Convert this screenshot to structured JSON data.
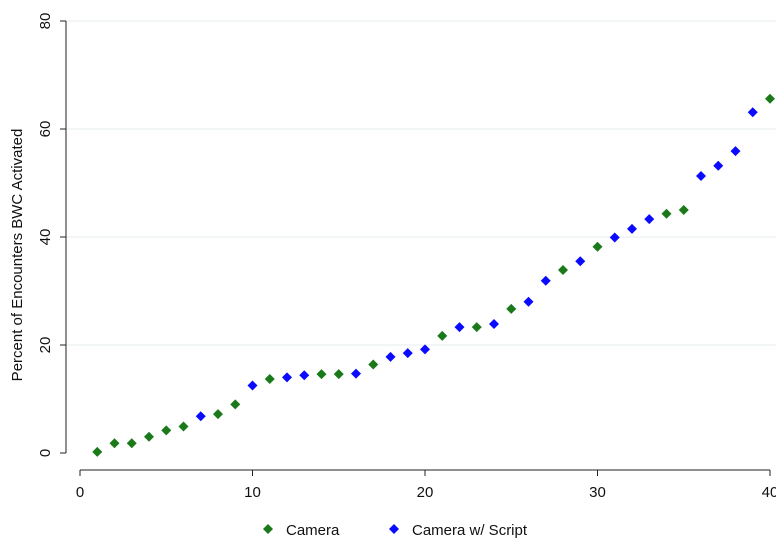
{
  "chart_data": {
    "type": "scatter",
    "title": "",
    "xlabel": "",
    "ylabel": "Percent of Encounters BWC Activated",
    "xlim": [
      0,
      40
    ],
    "ylim": [
      0,
      80
    ],
    "xticks": [
      0,
      10,
      20,
      30,
      40
    ],
    "yticks": [
      0,
      20,
      40,
      60,
      80
    ],
    "grid": "horizontal",
    "legend_position": "bottom",
    "colors": {
      "Camera": "#1a7a1a",
      "Camera w/ Script": "#0a0aff"
    },
    "series": [
      {
        "name": "Camera",
        "points": [
          [
            1,
            0.2
          ],
          [
            2,
            1.8
          ],
          [
            3,
            1.8
          ],
          [
            4,
            3.0
          ],
          [
            5,
            4.2
          ],
          [
            6,
            4.9
          ],
          [
            8,
            7.2
          ],
          [
            9,
            9.0
          ],
          [
            11,
            13.7
          ],
          [
            14,
            14.6
          ],
          [
            15,
            14.6
          ],
          [
            17,
            16.4
          ],
          [
            21,
            21.7
          ],
          [
            23,
            23.3
          ],
          [
            25,
            26.7
          ],
          [
            28,
            33.9
          ],
          [
            30,
            38.2
          ],
          [
            34,
            44.3
          ],
          [
            35,
            45.0
          ],
          [
            40,
            65.6
          ]
        ]
      },
      {
        "name": "Camera w/ Script",
        "points": [
          [
            7,
            6.8
          ],
          [
            10,
            12.5
          ],
          [
            12,
            14.0
          ],
          [
            13,
            14.4
          ],
          [
            16,
            14.7
          ],
          [
            18,
            17.8
          ],
          [
            19,
            18.5
          ],
          [
            20,
            19.2
          ],
          [
            22,
            23.3
          ],
          [
            24,
            23.9
          ],
          [
            26,
            28.0
          ],
          [
            27,
            31.9
          ],
          [
            29,
            35.5
          ],
          [
            31,
            39.9
          ],
          [
            32,
            41.5
          ],
          [
            33,
            43.3
          ],
          [
            36,
            51.3
          ],
          [
            37,
            53.2
          ],
          [
            38,
            55.9
          ],
          [
            39,
            63.1
          ]
        ]
      }
    ]
  }
}
